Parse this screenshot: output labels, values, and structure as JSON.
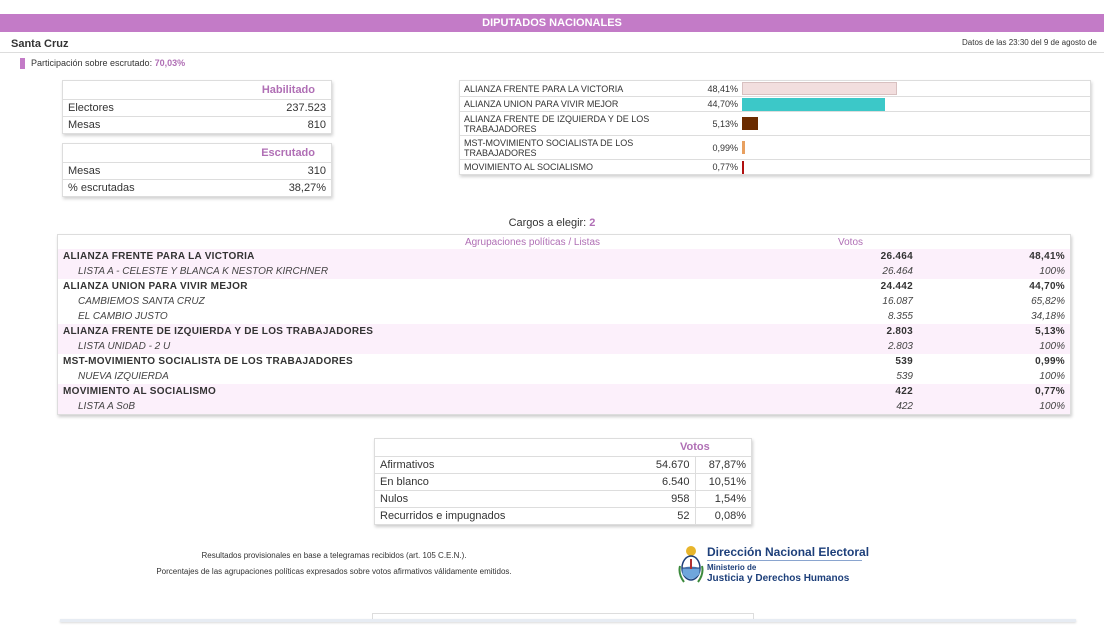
{
  "header": {
    "title": "DIPUTADOS NACIONALES",
    "region": "Santa Cruz",
    "datetime": "Datos de las 23:30 del 9 de agosto de",
    "participation_label": "Participación sobre escrutado:",
    "participation_value": "70,03%"
  },
  "habilitado": {
    "title": "Habilitado",
    "rows": [
      {
        "label": "Electores",
        "value": "237.523"
      },
      {
        "label": "Mesas",
        "value": "810"
      }
    ]
  },
  "escrutado": {
    "title": "Escrutado",
    "rows": [
      {
        "label": "Mesas",
        "value": "310"
      },
      {
        "label": "% escrutadas",
        "value": "38,27%"
      }
    ]
  },
  "bar_summary": [
    {
      "name": "ALIANZA FRENTE PARA LA VICTORIA",
      "pct": "48,41%",
      "value": 48.41,
      "color": "#f2dede"
    },
    {
      "name": "ALIANZA UNION PARA VIVIR MEJOR",
      "pct": "44,70%",
      "value": 44.7,
      "color": "#3cc8c8"
    },
    {
      "name": "ALIANZA FRENTE DE IZQUIERDA Y DE LOS TRABAJADORES",
      "pct": "5,13%",
      "value": 5.13,
      "color": "#6b2b00"
    },
    {
      "name": "MST-MOVIMIENTO SOCIALISTA DE LOS TRABAJADORES",
      "pct": "0,99%",
      "value": 0.99,
      "color": "#e8a060"
    },
    {
      "name": "MOVIMIENTO AL SOCIALISMO",
      "pct": "0,77%",
      "value": 0.77,
      "color": "#b01010"
    }
  ],
  "cargos": {
    "label": "Cargos a elegir:",
    "value": "2"
  },
  "results": {
    "col_agrupaciones": "Agrupaciones políticas / Listas",
    "col_votos": "Votos",
    "parties": [
      {
        "name": "ALIANZA FRENTE PARA LA VICTORIA",
        "votes": "26.464",
        "pct": "48,41%",
        "lists": [
          {
            "name": "LISTA A - CELESTE Y BLANCA K NESTOR KIRCHNER",
            "votes": "26.464",
            "pct": "100%"
          }
        ]
      },
      {
        "name": "ALIANZA UNION PARA VIVIR MEJOR",
        "votes": "24.442",
        "pct": "44,70%",
        "lists": [
          {
            "name": "CAMBIEMOS SANTA CRUZ",
            "votes": "16.087",
            "pct": "65,82%"
          },
          {
            "name": "EL CAMBIO JUSTO",
            "votes": "8.355",
            "pct": "34,18%"
          }
        ]
      },
      {
        "name": "ALIANZA FRENTE DE IZQUIERDA Y DE LOS TRABAJADORES",
        "votes": "2.803",
        "pct": "5,13%",
        "lists": [
          {
            "name": "LISTA UNIDAD - 2 U",
            "votes": "2.803",
            "pct": "100%"
          }
        ]
      },
      {
        "name": "MST-MOVIMIENTO SOCIALISTA DE LOS TRABAJADORES",
        "votes": "539",
        "pct": "0,99%",
        "lists": [
          {
            "name": "NUEVA IZQUIERDA",
            "votes": "539",
            "pct": "100%"
          }
        ]
      },
      {
        "name": "MOVIMIENTO AL SOCIALISMO",
        "votes": "422",
        "pct": "0,77%",
        "lists": [
          {
            "name": "LISTA A SoB",
            "votes": "422",
            "pct": "100%"
          }
        ]
      }
    ]
  },
  "votos": {
    "title": "Votos",
    "rows": [
      {
        "label": "Afirmativos",
        "votes": "54.670",
        "pct": "87,87%"
      },
      {
        "label": "En blanco",
        "votes": "6.540",
        "pct": "10,51%"
      },
      {
        "label": "Nulos",
        "votes": "958",
        "pct": "1,54%"
      },
      {
        "label": "Recurridos e impugnados",
        "votes": "52",
        "pct": "0,08%"
      }
    ]
  },
  "footnotes": [
    "Resultados provisionales en base a telegramas recibidos (art. 105 C.E.N.).",
    "Porcentajes de las agrupaciones políticas expresados sobre votos afirmativos válidamente emitidos."
  ],
  "logo": {
    "title": "Dirección Nacional Electoral",
    "ministerio": "Ministerio de",
    "dept": "Justicia y Derechos Humanos"
  }
}
